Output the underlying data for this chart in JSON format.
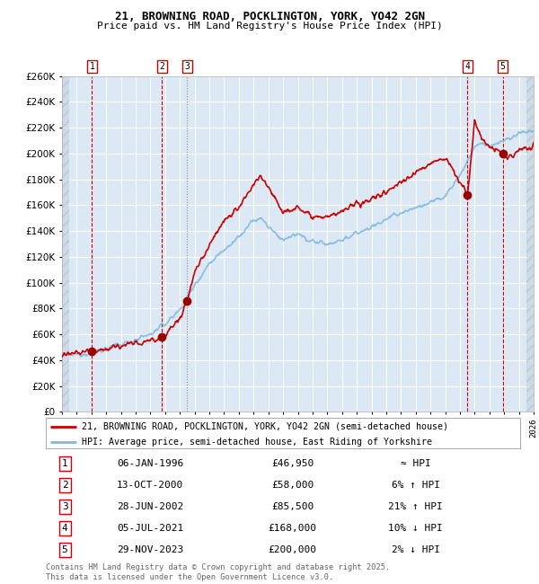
{
  "title1": "21, BROWNING ROAD, POCKLINGTON, YORK, YO42 2GN",
  "title2": "Price paid vs. HM Land Registry's House Price Index (HPI)",
  "xlim_start": 1994,
  "xlim_end": 2026,
  "ylim_min": 0,
  "ylim_max": 260000,
  "ytick_step": 20000,
  "bg_plot_color": "#dce9f5",
  "grid_color": "#ffffff",
  "sale_color": "#cc0000",
  "hpi_color": "#7fb8e0",
  "sale_label": "21, BROWNING ROAD, POCKLINGTON, YORK, YO42 2GN (semi-detached house)",
  "hpi_label": "HPI: Average price, semi-detached house, East Riding of Yorkshire",
  "transactions": [
    {
      "num": 1,
      "date_str": "06-JAN-1996",
      "date_x": 1996.03,
      "price": 46950,
      "rel": "≈ HPI"
    },
    {
      "num": 2,
      "date_str": "13-OCT-2000",
      "date_x": 2000.79,
      "price": 58000,
      "rel": "6% ↑ HPI"
    },
    {
      "num": 3,
      "date_str": "28-JUN-2002",
      "date_x": 2002.49,
      "price": 85500,
      "rel": "21% ↑ HPI"
    },
    {
      "num": 4,
      "date_str": "05-JUL-2021",
      "date_x": 2021.51,
      "price": 168000,
      "rel": "10% ↓ HPI"
    },
    {
      "num": 5,
      "date_str": "29-NOV-2023",
      "date_x": 2023.91,
      "price": 200000,
      "rel": "2% ↓ HPI"
    }
  ],
  "footer": "Contains HM Land Registry data © Crown copyright and database right 2025.\nThis data is licensed under the Open Government Licence v3.0.",
  "sale_color_box": "#cc0000",
  "vline_color": "#cc0000"
}
